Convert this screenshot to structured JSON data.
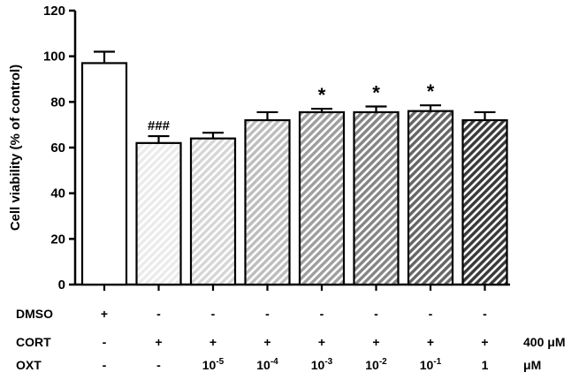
{
  "chart_data": {
    "type": "bar",
    "title": "",
    "xlabel": "",
    "ylabel": "Cell viability (% of control)",
    "ylim": [
      0,
      120
    ],
    "yticks": [
      "0",
      "20",
      "40",
      "60",
      "80",
      "100",
      "120"
    ],
    "values": [
      97,
      62,
      64,
      72,
      75.5,
      75.5,
      76,
      72
    ],
    "errors": [
      5,
      3,
      2.5,
      3.5,
      1.5,
      2.5,
      2.5,
      3.5
    ],
    "annotations": [
      "",
      "###",
      "",
      "",
      "*",
      "*",
      "*",
      ""
    ],
    "bar_fills": [
      "#ffffff",
      "#ebebeb",
      "#d6d6d6",
      "#bdbdbd",
      "#9e9e9e",
      "#858585",
      "#666666",
      "#3a3a3a"
    ],
    "treatment_rows": [
      {
        "label": "DMSO",
        "unit": "",
        "cells": [
          "+",
          "-",
          "-",
          "-",
          "-",
          "-",
          "-",
          "-"
        ]
      },
      {
        "label": "CORT",
        "unit": "400 μM",
        "cells": [
          "-",
          "+",
          "+",
          "+",
          "+",
          "+",
          "+",
          "+"
        ]
      },
      {
        "label": "OXT",
        "unit": "μM",
        "cells": [
          "-",
          "-",
          "10-5",
          "10-4",
          "10-3",
          "10-2",
          "10-1",
          "1"
        ]
      }
    ],
    "grid": false,
    "legend": "none"
  }
}
